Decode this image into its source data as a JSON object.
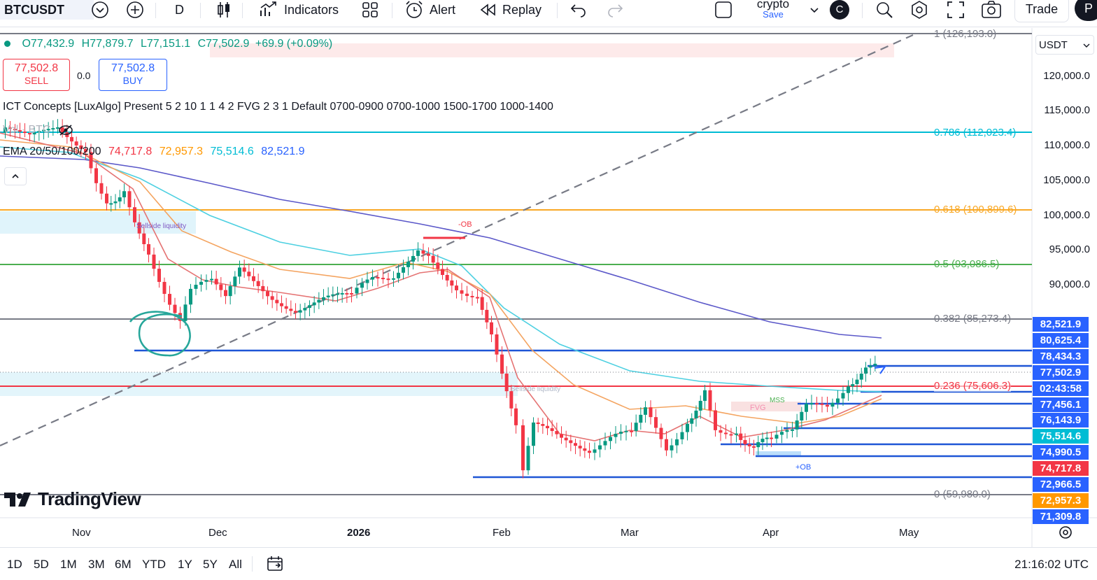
{
  "toolbar": {
    "symbol": "BTCUSDT",
    "interval": "D",
    "indicators_label": "Indicators",
    "alert_label": "Alert",
    "replay_label": "Replay",
    "layout_name": "crypto",
    "save_label": "Save",
    "avatar_letter": "C",
    "trade_label": "Trade",
    "publish_partial": "P"
  },
  "ohlc": {
    "open": "O77,432.9",
    "high": "H77,879.7",
    "low": "L77,151.1",
    "close": "C77,502.9",
    "change": "+69.9 (+0.09%)"
  },
  "trade_panel": {
    "sell_price": "77,502.8",
    "sell_label": "SELL",
    "spread": "0.0",
    "buy_price": "77,502.8",
    "buy_label": "BUY"
  },
  "indicators": {
    "ict": "ICT Concepts [LuxAlgo] Present 5 2 10 1 1 4 2 FVG 2 3 1 Default 0700-0900 0700-1000 1500-1700 1000-1400",
    "vol": "Vol · BTC",
    "ema_label": "EMA 20/50/100/200",
    "ema20": "74,717.8",
    "ema50": "72,957.3",
    "ema100": "75,514.6",
    "ema200": "82,521.9"
  },
  "currency": "USDT",
  "fib_levels": [
    {
      "label": "1 (126,193.0)",
      "color": "#787b86"
    },
    {
      "label": "0.786 (112,023.4)",
      "color": "#00bcd4"
    },
    {
      "label": "0.618 (100,899.6)",
      "color": "#f9a825"
    },
    {
      "label": "0.5 (93,086.5)",
      "color": "#4caf50"
    },
    {
      "label": "0.382 (85,273.4)",
      "color": "#787b86"
    },
    {
      "label": "0.236 (75,606.3)",
      "color": "#f23645"
    },
    {
      "label": "0 (59,980.0)",
      "color": "#787b86"
    }
  ],
  "price_axis": [
    "120,000.0",
    "115,000.0",
    "110,000.0",
    "105,000.0",
    "100,000.0",
    "95,000.0",
    "90,000.0"
  ],
  "price_labels": [
    {
      "text": "82,521.9",
      "color": "#2962ff"
    },
    {
      "text": "80,625.4",
      "color": "#2962ff"
    },
    {
      "text": "78,434.3",
      "color": "#2962ff"
    },
    {
      "text": "77,502.9",
      "color": "#2962ff"
    },
    {
      "text": "02:43:58",
      "color": "#2962ff"
    },
    {
      "text": "77,456.1",
      "color": "#2962ff"
    },
    {
      "text": "76,143.9",
      "color": "#2962ff"
    },
    {
      "text": "75,514.6",
      "color": "#00bcd4"
    },
    {
      "text": "74,990.5",
      "color": "#2962ff"
    },
    {
      "text": "74,717.8",
      "color": "#f23645"
    },
    {
      "text": "72,966.5",
      "color": "#2962ff"
    },
    {
      "text": "72,957.3",
      "color": "#ff9800"
    },
    {
      "text": "71,309.8",
      "color": "#2962ff"
    }
  ],
  "annotations": {
    "sellside1": "Sellside liquidity",
    "sellside2": "Sellside liquidity",
    "ob_minus": "-OB",
    "ob_plus": "+OB",
    "fvg": "FVG",
    "mss": "MSS"
  },
  "time_axis": [
    "Nov",
    "Dec",
    "2026",
    "Feb",
    "Mar",
    "Apr",
    "May"
  ],
  "watermark": "TradingView",
  "ranges": [
    "1D",
    "5D",
    "1M",
    "3M",
    "6M",
    "YTD",
    "1Y",
    "5Y",
    "All"
  ],
  "clock": "21:16:02 UTC"
}
